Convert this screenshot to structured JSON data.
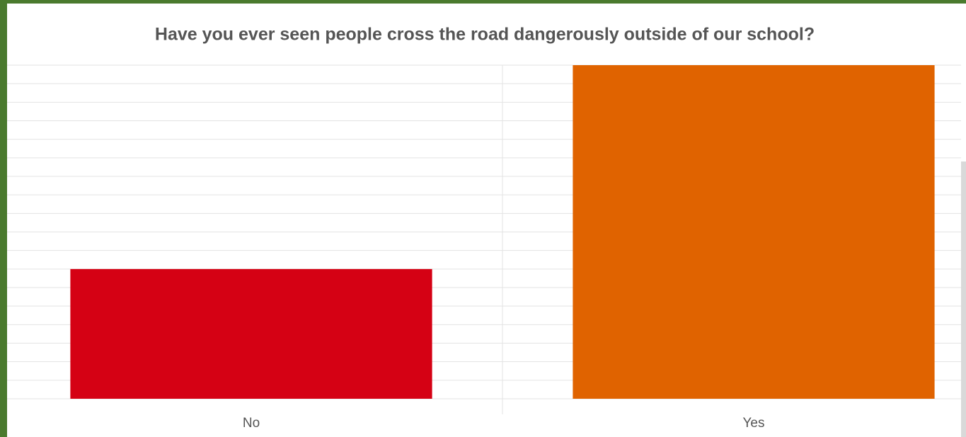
{
  "chart_data": {
    "type": "bar",
    "title": "Have you ever seen people cross the road dangerously outside of our school?",
    "categories": [
      "No",
      "Yes"
    ],
    "values": [
      7,
      18
    ],
    "colors": [
      "#d50114",
      "#e06300"
    ],
    "ylim": [
      0,
      18
    ],
    "yticks": [
      0,
      1,
      2,
      3,
      4,
      5,
      6,
      7,
      8,
      9,
      10,
      11,
      12,
      13,
      14,
      15,
      16,
      17,
      18
    ],
    "grid": true
  }
}
